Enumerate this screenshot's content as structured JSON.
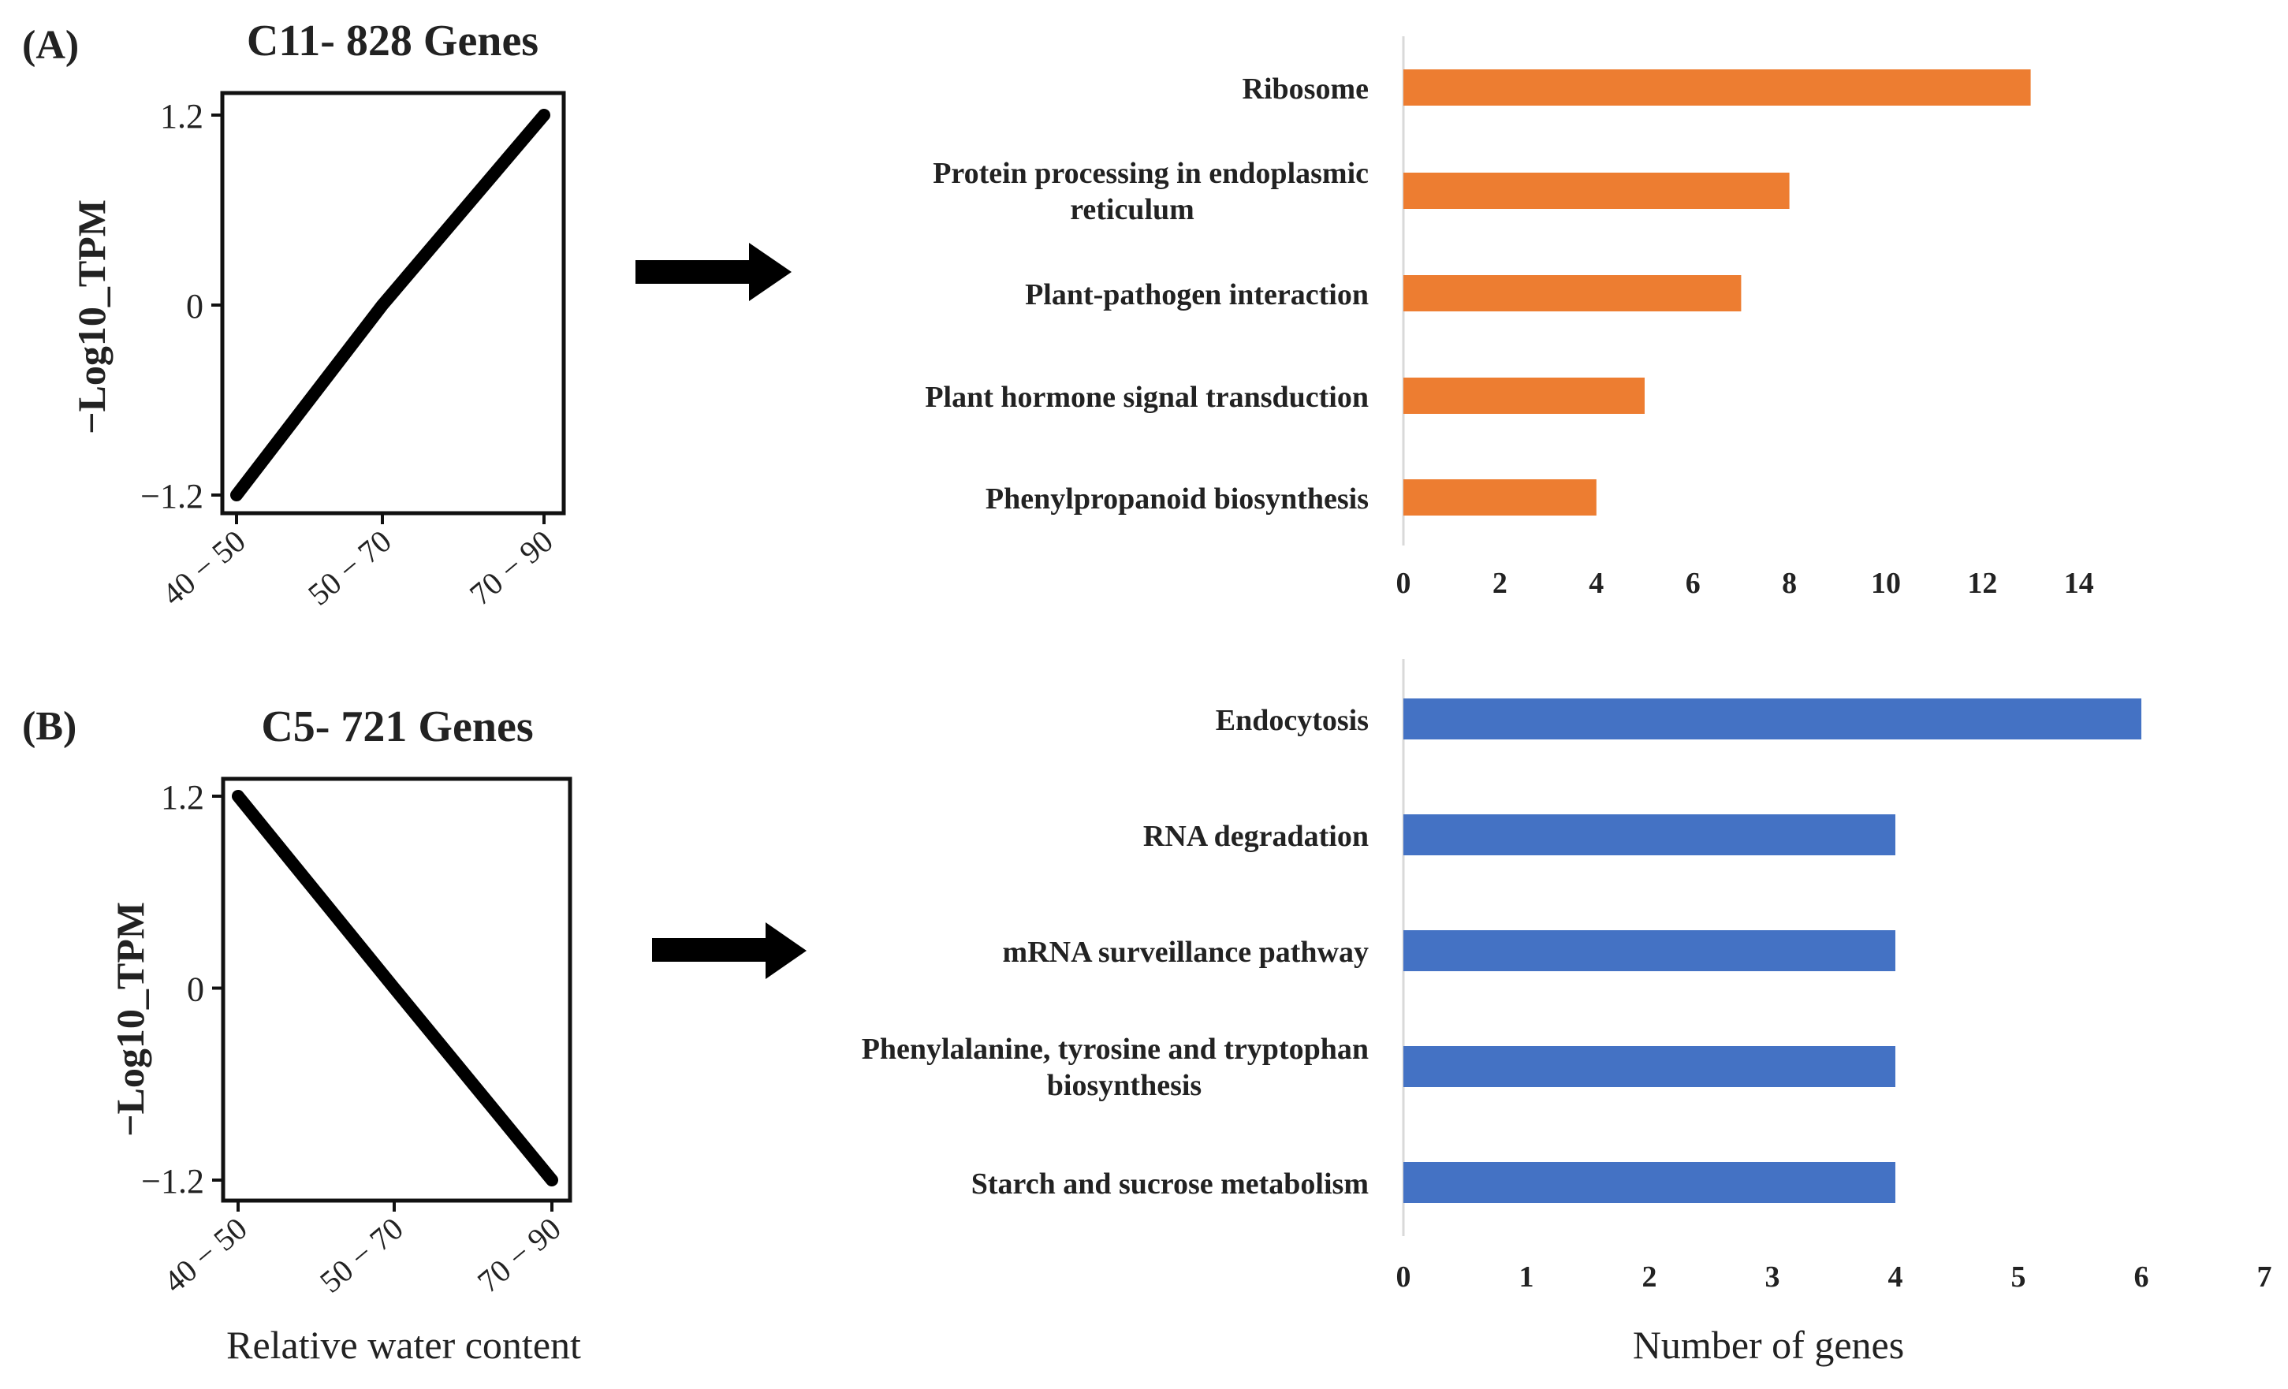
{
  "panel_a": {
    "label": "(A)",
    "line_plot": {
      "title": "C11- 828 Genes",
      "ylabel": "−Log10_TPM",
      "x_categories": [
        "40 − 50",
        "50 − 70",
        "70 − 90"
      ],
      "y_ticks": [
        "1.2",
        "0",
        "−1.2"
      ]
    }
  },
  "panel_b": {
    "label": "(B)",
    "line_plot": {
      "title": "C5- 721 Genes",
      "ylabel": "−Log10_TPM",
      "x_categories": [
        "40 − 50",
        "50 − 70",
        "70 − 90"
      ],
      "y_ticks": [
        "1.2",
        "0",
        "−1.2"
      ]
    }
  },
  "xlabel_left": "Relative water content",
  "xlabel_right": "Number of genes",
  "colors": {
    "orange": "#ED7D31",
    "blue": "#4472C4",
    "line": "#000000",
    "axis": "#d9d9d9"
  },
  "chart_data": [
    {
      "type": "line",
      "title": "C11- 828 Genes",
      "x": [
        "40 − 50",
        "50 − 70",
        "70 − 90"
      ],
      "y": [
        -1.2,
        0,
        1.2
      ],
      "ylabel": "−Log10_TPM",
      "xlabel": "Relative water content",
      "ylim": [
        -1.2,
        1.2
      ]
    },
    {
      "type": "line",
      "title": "C5- 721 Genes",
      "x": [
        "40 − 50",
        "50 − 70",
        "70 − 90"
      ],
      "y": [
        1.2,
        0,
        -1.2
      ],
      "ylabel": "−Log10_TPM",
      "xlabel": "Relative water content",
      "ylim": [
        -1.2,
        1.2
      ]
    },
    {
      "type": "bar",
      "orientation": "horizontal",
      "categories": [
        "Ribosome",
        "Protein processing in endoplasmic reticulum",
        "Plant-pathogen interaction",
        "Plant hormone signal transduction",
        "Phenylpropanoid biosynthesis"
      ],
      "label_lines": [
        [
          "Ribosome"
        ],
        [
          "Protein processing in endoplasmic",
          "reticulum"
        ],
        [
          "Plant-pathogen interaction"
        ],
        [
          "Plant hormone signal transduction"
        ],
        [
          "Phenylpropanoid biosynthesis"
        ]
      ],
      "values": [
        13,
        8,
        7,
        5,
        4
      ],
      "xlim": [
        0,
        14
      ],
      "xticks": [
        "0",
        "2",
        "4",
        "6",
        "8",
        "10",
        "12",
        "14"
      ],
      "color": "#ED7D31"
    },
    {
      "type": "bar",
      "orientation": "horizontal",
      "categories": [
        "Endocytosis",
        "RNA degradation",
        "mRNA surveillance pathway",
        "Phenylalanine, tyrosine and tryptophan biosynthesis",
        "Starch and sucrose metabolism"
      ],
      "label_lines": [
        [
          "Endocytosis"
        ],
        [
          "RNA degradation"
        ],
        [
          "mRNA surveillance pathway"
        ],
        [
          "Phenylalanine, tyrosine and tryptophan",
          "biosynthesis"
        ],
        [
          "Starch and sucrose metabolism"
        ]
      ],
      "values": [
        6,
        4,
        4,
        4,
        4
      ],
      "xlim": [
        0,
        7
      ],
      "xticks": [
        "0",
        "1",
        "2",
        "3",
        "4",
        "5",
        "6",
        "7"
      ],
      "xlabel": "Number of genes",
      "color": "#4472C4"
    }
  ]
}
